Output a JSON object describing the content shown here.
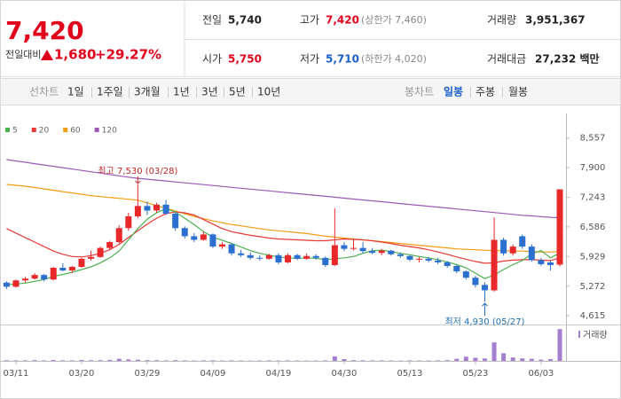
{
  "header": {
    "price": "7,420",
    "change_label": "전일대비",
    "change": "1,680",
    "change_rate": "+29.27%"
  },
  "stats": [
    {
      "label": "전일",
      "value": "5,740"
    },
    {
      "label": "고가",
      "value": "7,420",
      "note": "(상한가 7,460)"
    },
    {
      "label": "거래량",
      "value": "3,951,367"
    },
    {
      "label": "시가",
      "value": "5,750"
    },
    {
      "label": "저가",
      "value": "5,710",
      "note": "(하한가 4,020)"
    },
    {
      "label": "거래대금",
      "value": "27,232 백만"
    }
  ],
  "toolbar": {
    "line_chart": "선차트",
    "periods": [
      "1일",
      "1주일",
      "3개월",
      "1년",
      "3년",
      "5년",
      "10년"
    ],
    "candle_chart": "봉차트",
    "candle_periods": [
      "일봉",
      "주봉",
      "월봉"
    ]
  },
  "chart_data": {
    "type": "candlestick",
    "categories": [
      null,
      "03/11",
      null,
      null,
      null,
      null,
      null,
      null,
      "03/20",
      null,
      null,
      null,
      null,
      null,
      null,
      "03/29",
      null,
      null,
      null,
      null,
      null,
      null,
      "04/09",
      null,
      null,
      null,
      null,
      null,
      null,
      "04/19",
      null,
      null,
      null,
      null,
      null,
      null,
      "04/30",
      null,
      null,
      null,
      null,
      null,
      null,
      "05/13",
      null,
      null,
      null,
      null,
      null,
      null,
      "05/23",
      null,
      null,
      null,
      null,
      null,
      null,
      "06/03",
      null,
      null
    ],
    "open": [
      5350,
      5260,
      5400,
      5440,
      5520,
      5420,
      5680,
      5620,
      5700,
      5880,
      5920,
      6120,
      6250,
      6560,
      6820,
      7050,
      6950,
      7080,
      6880,
      6560,
      6380,
      6300,
      6420,
      6150,
      6200,
      6000,
      5960,
      5900,
      5880,
      5960,
      5800,
      5960,
      5880,
      5940,
      5900,
      5740,
      6180,
      6100,
      6120,
      6050,
      6010,
      6060,
      5980,
      5940,
      5860,
      5880,
      5840,
      5800,
      5720,
      5600,
      5460,
      5300,
      5180,
      6300,
      6000,
      6380,
      6150,
      5850,
      5800,
      5750
    ],
    "high": [
      5380,
      5420,
      5480,
      5560,
      5540,
      5700,
      5780,
      5720,
      5900,
      6060,
      6150,
      6280,
      6620,
      6900,
      7530,
      7150,
      7120,
      7180,
      6920,
      6600,
      6450,
      6480,
      6440,
      6250,
      6220,
      6080,
      6020,
      5960,
      5990,
      6000,
      6000,
      5990,
      6000,
      5980,
      5930,
      7000,
      6250,
      6300,
      6250,
      6120,
      6100,
      6080,
      6020,
      5960,
      5920,
      5920,
      5900,
      5830,
      5760,
      5620,
      5500,
      5360,
      6800,
      6350,
      6200,
      6420,
      6200,
      5900,
      5850,
      7420
    ],
    "low": [
      5210,
      5240,
      5350,
      5420,
      5380,
      5400,
      5600,
      5560,
      5680,
      5840,
      5900,
      6080,
      6220,
      6500,
      6780,
      6850,
      6900,
      6850,
      6500,
      6330,
      6250,
      6280,
      6120,
      6100,
      5950,
      5920,
      5860,
      5840,
      5860,
      5760,
      5780,
      5850,
      5860,
      5860,
      5700,
      5720,
      6050,
      6060,
      6000,
      5980,
      5960,
      5950,
      5900,
      5820,
      5800,
      5800,
      5760,
      5680,
      5560,
      5420,
      5240,
      4930,
      5150,
      5950,
      5950,
      6100,
      5820,
      5720,
      5620,
      5710
    ],
    "close": [
      5260,
      5400,
      5440,
      5520,
      5420,
      5680,
      5620,
      5700,
      5880,
      5920,
      6120,
      6250,
      6560,
      6820,
      7050,
      6950,
      7080,
      6880,
      6560,
      6380,
      6300,
      6420,
      6150,
      6200,
      6000,
      5960,
      5900,
      5880,
      5960,
      5800,
      5960,
      5880,
      5940,
      5900,
      5740,
      6180,
      6100,
      6120,
      6050,
      6010,
      6060,
      5980,
      5940,
      5860,
      5880,
      5840,
      5800,
      5720,
      5600,
      5460,
      5300,
      5180,
      6300,
      6000,
      6150,
      6150,
      5850,
      5760,
      5740,
      7420
    ],
    "up_color": "#e8282b",
    "down_color": "#2b6fd1",
    "ylim": [
      4500,
      8670
    ],
    "yticks": [
      {
        "value": 8557,
        "label": "8,557"
      },
      {
        "value": 7900,
        "label": "7,900"
      },
      {
        "value": 7243,
        "label": "7,243"
      },
      {
        "value": 6586,
        "label": "6,586"
      },
      {
        "value": 5929,
        "label": "5,929"
      },
      {
        "value": 5272,
        "label": "5,272"
      },
      {
        "value": 4615,
        "label": "4,615"
      }
    ],
    "lines": [
      {
        "name": "5",
        "color": "#4caf50",
        "values": [
          5300,
          5320,
          5340,
          5380,
          5420,
          5490,
          5530,
          5580,
          5640,
          5700,
          5790,
          5900,
          6050,
          6300,
          6550,
          6760,
          6900,
          6990,
          6920,
          6780,
          6640,
          6480,
          6360,
          6290,
          6220,
          6140,
          6060,
          6000,
          5960,
          5920,
          5900,
          5890,
          5900,
          5890,
          5860,
          5880,
          5900,
          5930,
          6000,
          6060,
          6070,
          6040,
          6000,
          5970,
          5930,
          5900,
          5860,
          5810,
          5750,
          5680,
          5560,
          5440,
          5520,
          5640,
          5750,
          5840,
          5990,
          6060,
          5900,
          6010
        ]
      },
      {
        "name": "20",
        "color": "#e53935",
        "values": [
          6550,
          6450,
          6350,
          6250,
          6150,
          6050,
          5980,
          5930,
          5920,
          5950,
          6000,
          6080,
          6200,
          6350,
          6500,
          6650,
          6780,
          6880,
          6920,
          6900,
          6850,
          6750,
          6650,
          6550,
          6480,
          6440,
          6400,
          6370,
          6340,
          6320,
          6310,
          6300,
          6290,
          6280,
          6280,
          6300,
          6320,
          6310,
          6300,
          6280,
          6250,
          6220,
          6180,
          6150,
          6120,
          6080,
          6030,
          5980,
          5920,
          5870,
          5820,
          5780,
          5790,
          5830,
          5850,
          5860,
          5860,
          5850,
          5840,
          5900
        ]
      },
      {
        "name": "60",
        "color": "#f39c12",
        "values": [
          7530,
          7510,
          7490,
          7460,
          7430,
          7400,
          7370,
          7340,
          7310,
          7280,
          7260,
          7240,
          7220,
          7200,
          7180,
          7120,
          7060,
          7000,
          6940,
          6880,
          6820,
          6770,
          6720,
          6680,
          6640,
          6610,
          6580,
          6550,
          6520,
          6500,
          6480,
          6460,
          6440,
          6410,
          6380,
          6360,
          6340,
          6320,
          6300,
          6280,
          6260,
          6240,
          6220,
          6200,
          6180,
          6160,
          6140,
          6120,
          6100,
          6090,
          6080,
          6070,
          6060,
          6060,
          6050,
          6050,
          6040,
          6030,
          6030,
          6040
        ]
      },
      {
        "name": "120",
        "color": "#9b59b6",
        "values": [
          8080,
          8050,
          8020,
          7990,
          7960,
          7930,
          7900,
          7870,
          7840,
          7810,
          7780,
          7750,
          7720,
          7690,
          7665,
          7645,
          7625,
          7605,
          7585,
          7565,
          7545,
          7525,
          7505,
          7485,
          7465,
          7445,
          7425,
          7405,
          7385,
          7365,
          7345,
          7325,
          7305,
          7285,
          7265,
          7245,
          7225,
          7205,
          7185,
          7165,
          7145,
          7125,
          7105,
          7085,
          7065,
          7045,
          7025,
          7005,
          6985,
          6965,
          6945,
          6925,
          6905,
          6885,
          6865,
          6845,
          6830,
          6815,
          6800,
          6790
        ]
      }
    ],
    "volume": {
      "name": "거래량",
      "color": "#a47fd0",
      "ylim": [
        0,
        4300000
      ],
      "values": [
        80000,
        60000,
        70000,
        90000,
        60000,
        110000,
        70000,
        60000,
        100000,
        80000,
        90000,
        120000,
        260000,
        180000,
        150000,
        90000,
        80000,
        70000,
        90000,
        60000,
        50000,
        60000,
        70000,
        50000,
        60000,
        50000,
        40000,
        50000,
        60000,
        50000,
        60000,
        50000,
        40000,
        50000,
        60000,
        560000,
        220000,
        90000,
        70000,
        60000,
        60000,
        50000,
        40000,
        60000,
        50000,
        50000,
        60000,
        80000,
        260000,
        520000,
        380000,
        300000,
        2300000,
        950000,
        420000,
        310000,
        260000,
        150000,
        210000,
        3951367
      ]
    },
    "annotations": [
      {
        "text": "최고 7,530 (03/28)",
        "value": 7530,
        "color": "#c0282b"
      },
      {
        "text": "최저 4,930 (05/27)",
        "value": 4930,
        "color": "#1f6fb5"
      }
    ]
  }
}
